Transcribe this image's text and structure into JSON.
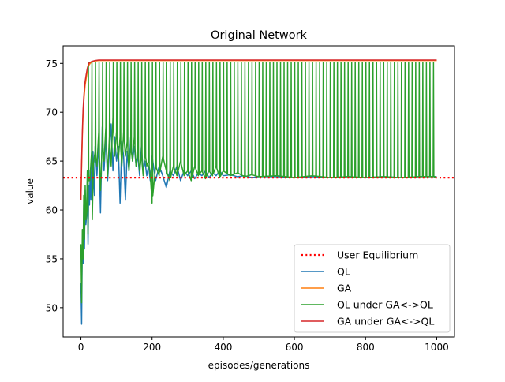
{
  "chart_data": {
    "type": "line",
    "title": "Original Network",
    "xlabel": "episodes/generations",
    "ylabel": "value",
    "xlim": [
      -50,
      1050
    ],
    "ylim": [
      47.0,
      76.8
    ],
    "xticks": [
      0,
      200,
      400,
      600,
      800,
      1000
    ],
    "yticks": [
      50,
      55,
      60,
      65,
      70,
      75
    ],
    "xtick_labels": [
      "0",
      "200",
      "400",
      "600",
      "800",
      "1000"
    ],
    "ytick_labels": [
      "50",
      "55",
      "60",
      "65",
      "70",
      "75"
    ],
    "grid": false,
    "legend_placement": "lower-right",
    "user_equilibrium": 63.3,
    "series": [
      {
        "name": "User Equilibrium",
        "color": "#ff0000",
        "style": "dotted",
        "x": [
          -50,
          1050
        ],
        "y": [
          63.3,
          63.3
        ]
      },
      {
        "name": "QL",
        "color": "#1f77b4",
        "style": "solid",
        "x": [
          0,
          2,
          4,
          6,
          8,
          10,
          12,
          14,
          16,
          18,
          20,
          22,
          24,
          26,
          28,
          30,
          32,
          34,
          36,
          38,
          40,
          45,
          50,
          55,
          60,
          65,
          70,
          75,
          80,
          85,
          90,
          95,
          100,
          105,
          110,
          115,
          120,
          125,
          130,
          135,
          140,
          145,
          150,
          155,
          160,
          165,
          170,
          175,
          180,
          185,
          190,
          195,
          200,
          210,
          220,
          230,
          240,
          250,
          260,
          270,
          280,
          290,
          300,
          310,
          320,
          330,
          340,
          350,
          360,
          370,
          380,
          390,
          400,
          420,
          440,
          460,
          480,
          500,
          550,
          600,
          650,
          700,
          750,
          800,
          850,
          900,
          950,
          1000
        ],
        "y": [
          52.5,
          48.3,
          57.0,
          54.5,
          60.5,
          56.0,
          62.0,
          58.5,
          59.5,
          63.0,
          56.5,
          62.5,
          60.5,
          64.0,
          61.0,
          65.0,
          62.5,
          66.0,
          63.0,
          61.5,
          66.5,
          63.5,
          67.0,
          59.7,
          68.5,
          64.0,
          67.5,
          63.0,
          66.0,
          68.8,
          64.0,
          67.5,
          65.0,
          66.5,
          60.7,
          67.0,
          65.5,
          61.0,
          66.0,
          64.0,
          67.5,
          65.0,
          66.5,
          64.5,
          65.5,
          63.5,
          66.5,
          64.0,
          65.0,
          63.5,
          64.5,
          63.0,
          65.5,
          63.0,
          64.5,
          63.5,
          62.3,
          64.0,
          63.5,
          64.5,
          63.0,
          64.0,
          63.5,
          64.0,
          63.2,
          63.8,
          63.5,
          64.0,
          63.3,
          63.8,
          63.5,
          64.0,
          63.5,
          63.6,
          63.4,
          63.5,
          63.3,
          63.4,
          63.4,
          63.3,
          63.4,
          63.3,
          63.4,
          63.3,
          63.4,
          63.3,
          63.4,
          63.4
        ]
      },
      {
        "name": "GA",
        "color": "#ff7f0e",
        "style": "solid",
        "x": [
          0,
          2,
          4,
          6,
          8,
          10,
          12,
          15,
          18,
          22,
          26,
          30,
          35,
          40,
          50,
          100,
          200,
          400,
          600,
          800,
          1000
        ],
        "y": [
          61.0,
          64.5,
          67.5,
          69.8,
          71.0,
          72.0,
          72.8,
          73.5,
          74.2,
          74.8,
          75.0,
          75.1,
          75.2,
          75.25,
          75.3,
          75.3,
          75.3,
          75.3,
          75.3,
          75.3,
          75.3
        ]
      },
      {
        "name": "QL under GA<->QL",
        "color": "#2ca02c",
        "style": "solid",
        "x": [
          0,
          2,
          4,
          6,
          8,
          10,
          12,
          14,
          16,
          18,
          20,
          22,
          24,
          26,
          28,
          30,
          32,
          34,
          36,
          38,
          40,
          45,
          50,
          55,
          60,
          65,
          70,
          75,
          80,
          85,
          90,
          95,
          100,
          105,
          110,
          115,
          120,
          125,
          130,
          135,
          140,
          145,
          150,
          155,
          160,
          165,
          170,
          175,
          180,
          185,
          190,
          195,
          200,
          210,
          220,
          230,
          240,
          250,
          260,
          270,
          280,
          290,
          300,
          310,
          320,
          330,
          340,
          350,
          360,
          370,
          380,
          390,
          400,
          420,
          440,
          460,
          480,
          500,
          550,
          600,
          650,
          700,
          750,
          800,
          850,
          900,
          950,
          1000
        ],
        "y": [
          56.5,
          50.5,
          58.0,
          55.0,
          61.5,
          57.0,
          62.5,
          59.0,
          60.0,
          64.0,
          57.5,
          63.0,
          61.0,
          65.0,
          62.0,
          66.0,
          59.0,
          67.0,
          62.5,
          64.5,
          66.0,
          64.5,
          68.0,
          62.0,
          67.0,
          65.0,
          68.5,
          63.5,
          67.5,
          64.5,
          69.5,
          65.5,
          68.0,
          65.0,
          67.5,
          64.5,
          68.0,
          65.5,
          67.0,
          64.0,
          66.5,
          65.0,
          67.5,
          64.5,
          66.0,
          64.0,
          65.5,
          63.5,
          66.0,
          64.5,
          65.0,
          63.5,
          60.7,
          64.5,
          63.5,
          65.5,
          64.0,
          63.0,
          64.5,
          63.5,
          65.0,
          63.5,
          64.0,
          63.0,
          64.5,
          63.5,
          64.0,
          63.2,
          64.0,
          63.5,
          64.5,
          63.3,
          64.0,
          63.5,
          63.8,
          63.4,
          63.6,
          63.4,
          63.5,
          63.3,
          63.5,
          63.3,
          63.4,
          63.3,
          63.4,
          63.3,
          63.4,
          63.4
        ]
      },
      {
        "name": "GA under GA<->QL",
        "color": "#d62728",
        "style": "solid",
        "x": [
          0,
          2,
          4,
          6,
          8,
          10,
          12,
          15,
          18,
          22,
          26,
          30,
          35,
          40,
          50,
          100,
          200,
          400,
          600,
          800,
          1000
        ],
        "y": [
          61.0,
          65.0,
          68.0,
          70.2,
          71.5,
          72.5,
          73.2,
          73.9,
          74.5,
          75.0,
          75.1,
          75.2,
          75.25,
          75.3,
          75.35,
          75.35,
          75.35,
          75.35,
          75.35,
          75.35,
          75.35
        ]
      }
    ],
    "ql_under_ga_oscillation": {
      "series_name": "QL under GA<->QL",
      "start": 20,
      "end": 990,
      "period": 10,
      "high": 75.1,
      "low": 63.3
    }
  }
}
